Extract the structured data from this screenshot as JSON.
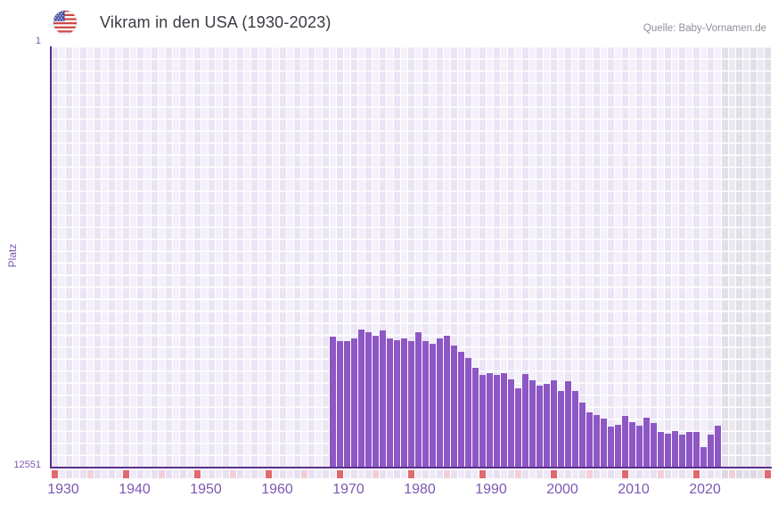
{
  "header": {
    "title": "Vikram in den USA (1930-2023)",
    "source": "Quelle: Baby-Vornamen.de",
    "flag_icon": "us-flag"
  },
  "axes": {
    "y_label": "Platz",
    "y_top_tick": "1",
    "y_bottom_tick": "12551",
    "x_ticks": [
      "1930",
      "1940",
      "1950",
      "1960",
      "1970",
      "1980",
      "1990",
      "2000",
      "2010",
      "2020"
    ]
  },
  "chart_data": {
    "type": "bar",
    "title": "Vikram in den USA (1930-2023)",
    "xlabel": "",
    "ylabel": "Platz",
    "y_axis_inverted": true,
    "ylim": [
      1,
      12551
    ],
    "x_range_years": [
      1930,
      2030
    ],
    "no_data_band_years": [
      2024,
      2030
    ],
    "grid": true,
    "years": [
      1969,
      1970,
      1971,
      1972,
      1973,
      1974,
      1975,
      1976,
      1977,
      1978,
      1979,
      1980,
      1981,
      1982,
      1983,
      1984,
      1985,
      1986,
      1987,
      1988,
      1989,
      1990,
      1991,
      1992,
      1993,
      1994,
      1995,
      1996,
      1997,
      1998,
      1999,
      2000,
      2001,
      2002,
      2003,
      2004,
      2005,
      2006,
      2007,
      2008,
      2009,
      2010,
      2011,
      2012,
      2013,
      2014,
      2015,
      2016,
      2017,
      2018,
      2019,
      2020,
      2021,
      2022,
      2023
    ],
    "ranks": [
      8680,
      8810,
      8790,
      8720,
      8460,
      8530,
      8630,
      8480,
      8720,
      8780,
      8720,
      8810,
      8530,
      8790,
      8880,
      8720,
      8630,
      8940,
      9120,
      9300,
      9610,
      9810,
      9770,
      9810,
      9770,
      9940,
      10210,
      9790,
      9960,
      10120,
      10080,
      9960,
      10300,
      9990,
      10280,
      10630,
      10920,
      11010,
      11120,
      11360,
      11310,
      11030,
      11220,
      11340,
      11100,
      11260,
      11510,
      11580,
      11500,
      11590,
      11510,
      11510,
      11960,
      11590,
      11340
    ],
    "decade_marker_years": [
      1930,
      1940,
      1950,
      1960,
      1970,
      1980,
      1990,
      2000,
      2010,
      2020,
      2030
    ],
    "half_decade_marker_years": [
      1935,
      1945,
      1955,
      1965,
      1975,
      1985,
      1995,
      2005,
      2015,
      2025
    ]
  },
  "colors": {
    "bar": "#8d57c5",
    "axis_line": "#5a2d8c",
    "tick_text": "#7d57b3",
    "title_text": "#3a3a43",
    "source_text": "#8f8f99",
    "cell_dark": "#eae4f5",
    "cell_light": "#f3f0fa",
    "band_cell_dark": "#e2dfe9",
    "band_cell_light": "#ebe8f0",
    "marker_red": "#e0686f",
    "marker_pink": "#f3ced8",
    "marker_lav_dark": "#e7e0f1",
    "marker_lav_light": "#efe9f7",
    "marker_band_dark": "#dcd8e4",
    "marker_band_light": "#e4e0ea",
    "flag_red": "#cb4a44",
    "flag_blue": "#41479b"
  }
}
